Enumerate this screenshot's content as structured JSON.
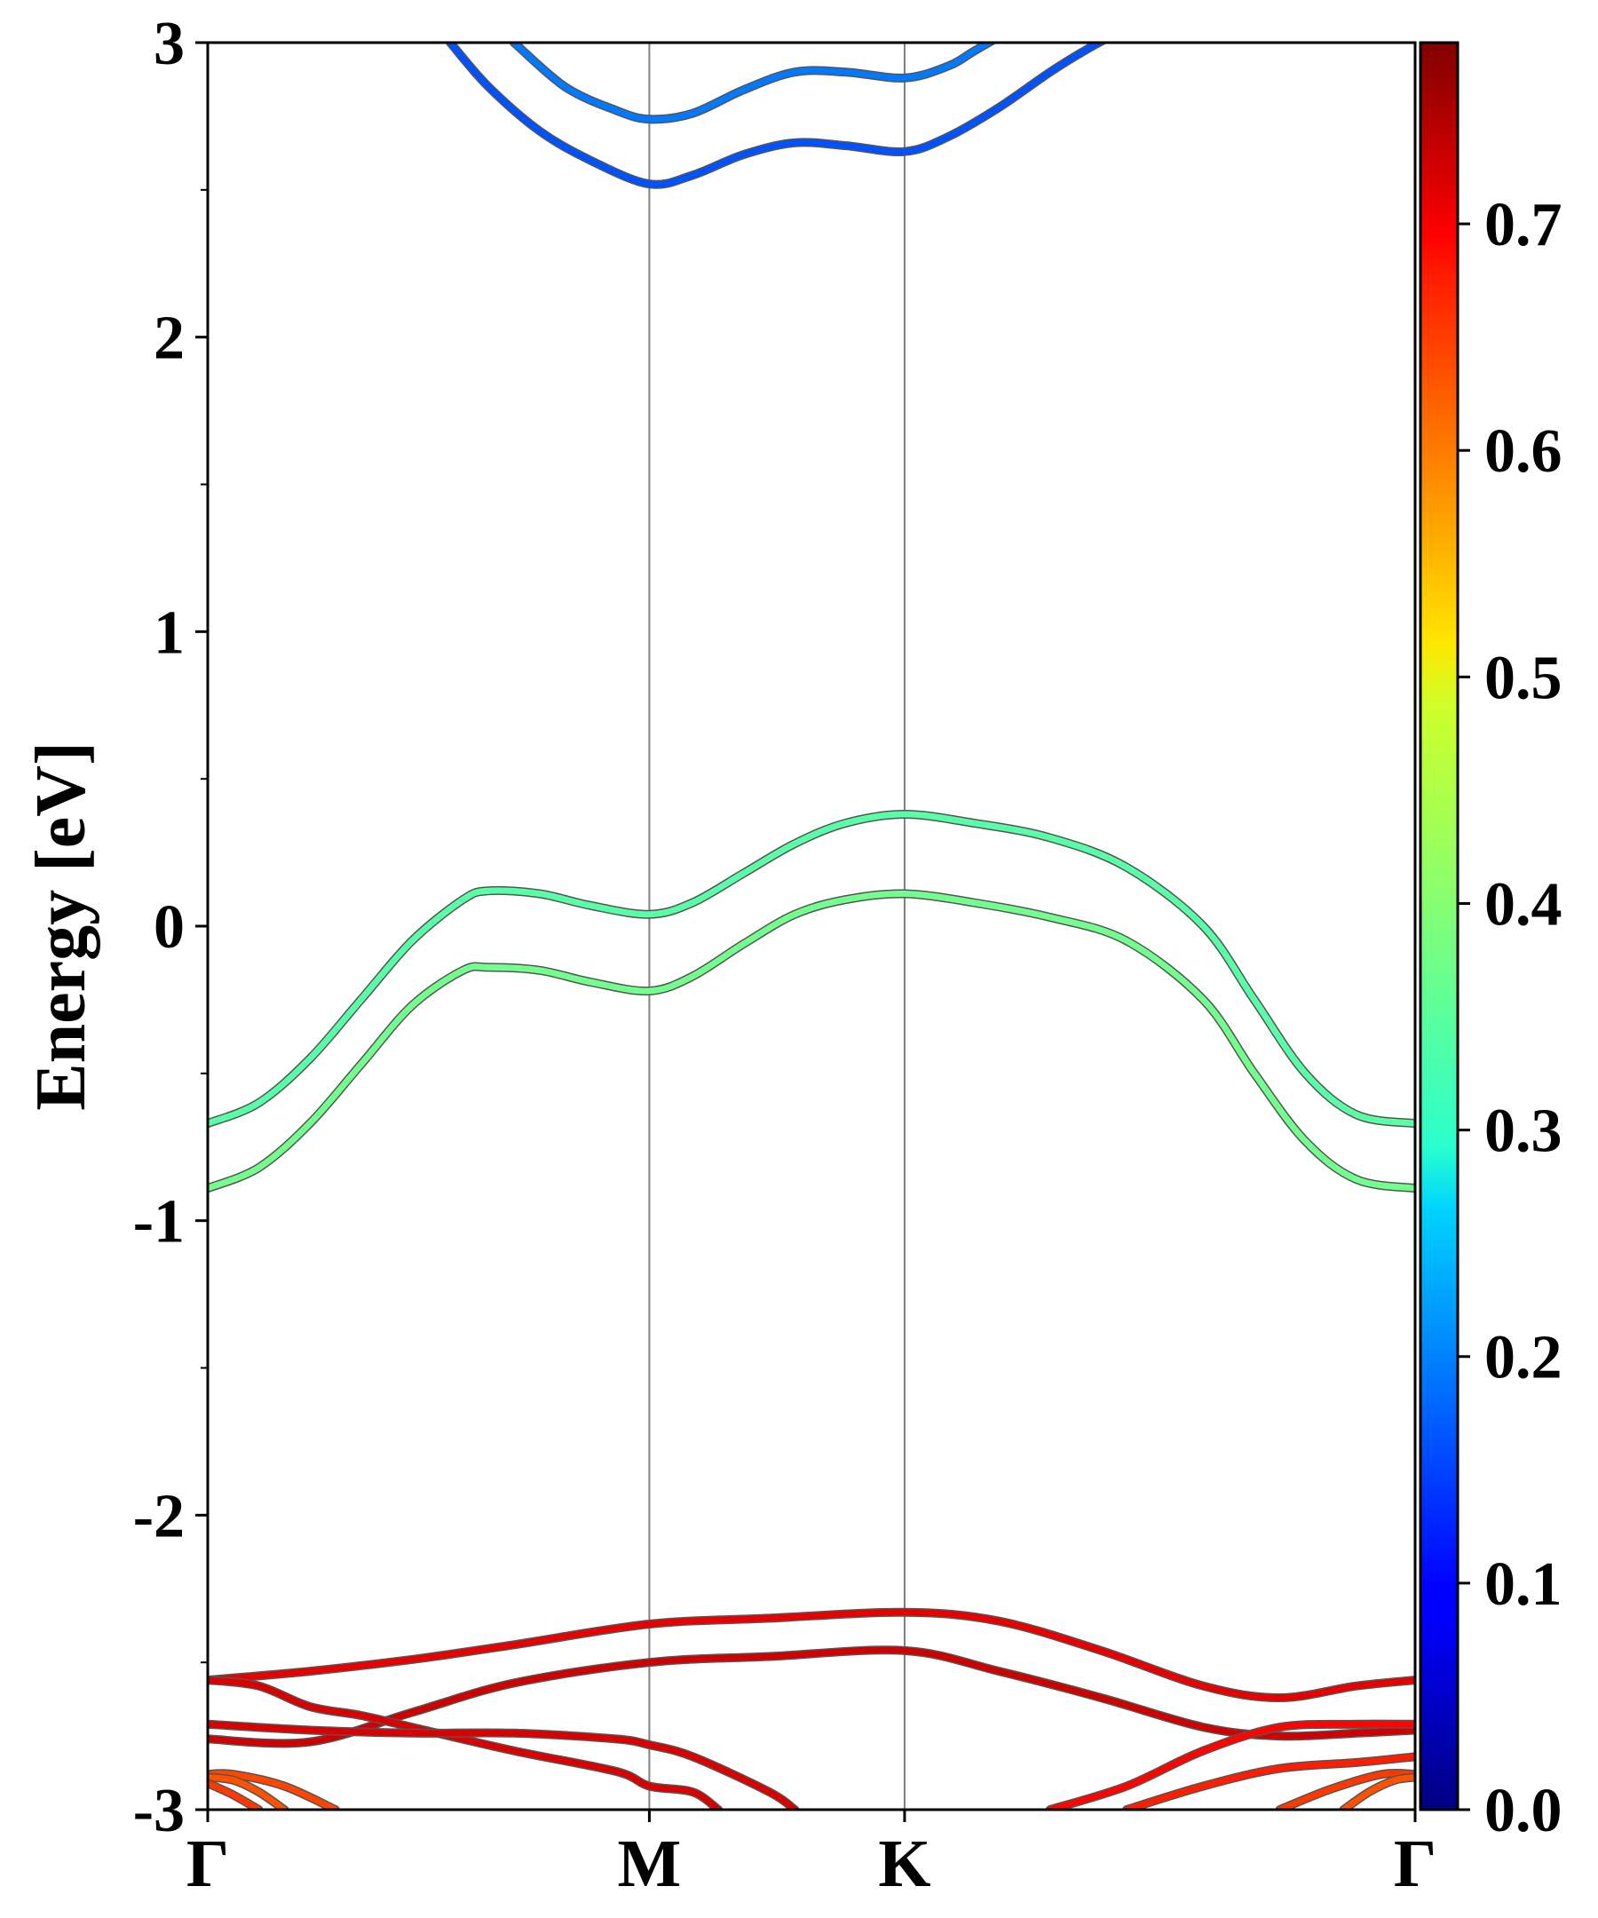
{
  "chart_data": {
    "type": "line",
    "title": "",
    "xlabel": "",
    "ylabel": "Energy [eV]",
    "ylim": [
      -3,
      3
    ],
    "y_ticks": [
      -3,
      -2,
      -1,
      0,
      1,
      2,
      3
    ],
    "y_tick_labels": [
      "-3",
      "-2",
      "-1",
      "0",
      "1",
      "2",
      "3"
    ],
    "x_range": [
      0,
      4.73
    ],
    "k_points": [
      {
        "label": "Γ",
        "x": 0
      },
      {
        "label": "M",
        "x": 1.73
      },
      {
        "label": "K",
        "x": 2.73
      },
      {
        "label": "Γ",
        "x": 4.73
      }
    ],
    "grid": false,
    "colorbar": {
      "colormap": "jet",
      "range": [
        0,
        0.78
      ],
      "ticks": [
        0.0,
        0.1,
        0.2,
        0.3,
        0.4,
        0.5,
        0.6,
        0.7
      ],
      "tick_labels": [
        "0.0",
        "0.1",
        "0.2",
        "0.3",
        "0.4",
        "0.5",
        "0.6",
        "0.7"
      ]
    },
    "series": [
      {
        "x": [
          0.95,
          1.1,
          1.3,
          1.5,
          1.73,
          1.9,
          2.1,
          2.3,
          2.5,
          2.73,
          2.9,
          3.1,
          3.3,
          3.45,
          3.6
        ],
        "y": [
          3.0,
          2.85,
          2.7,
          2.6,
          2.52,
          2.55,
          2.62,
          2.66,
          2.65,
          2.63,
          2.68,
          2.78,
          2.9,
          2.98,
          3.05
        ],
        "color_value": 0.16
      },
      {
        "x": [
          1.2,
          1.4,
          1.6,
          1.73,
          1.9,
          2.1,
          2.3,
          2.5,
          2.73,
          2.9,
          3.0,
          3.1
        ],
        "y": [
          3.0,
          2.85,
          2.77,
          2.74,
          2.76,
          2.84,
          2.9,
          2.9,
          2.88,
          2.92,
          2.97,
          3.02
        ],
        "color_value": 0.19
      },
      {
        "x": [
          0,
          0.2,
          0.4,
          0.6,
          0.8,
          1.0,
          1.1,
          1.3,
          1.5,
          1.73,
          1.9,
          2.1,
          2.3,
          2.5,
          2.73,
          3.0,
          3.3,
          3.6,
          3.9,
          4.1,
          4.3,
          4.5,
          4.73
        ],
        "y": [
          -0.67,
          -0.6,
          -0.45,
          -0.25,
          -0.05,
          0.09,
          0.12,
          0.11,
          0.07,
          0.04,
          0.08,
          0.18,
          0.28,
          0.35,
          0.38,
          0.35,
          0.3,
          0.2,
          0.0,
          -0.25,
          -0.5,
          -0.64,
          -0.67
        ],
        "color_value": 0.36
      },
      {
        "x": [
          0,
          0.2,
          0.4,
          0.6,
          0.8,
          1.0,
          1.1,
          1.3,
          1.5,
          1.73,
          1.9,
          2.1,
          2.3,
          2.5,
          2.73,
          3.0,
          3.3,
          3.6,
          3.9,
          4.1,
          4.3,
          4.5,
          4.73
        ],
        "y": [
          -0.89,
          -0.82,
          -0.67,
          -0.47,
          -0.27,
          -0.15,
          -0.14,
          -0.15,
          -0.19,
          -0.22,
          -0.17,
          -0.06,
          0.04,
          0.09,
          0.11,
          0.08,
          0.03,
          -0.05,
          -0.25,
          -0.5,
          -0.73,
          -0.86,
          -0.89
        ],
        "color_value": 0.38
      },
      {
        "x": [
          0,
          0.4,
          0.8,
          1.2,
          1.73,
          2.2,
          2.73,
          3.1,
          3.5,
          3.9,
          4.2,
          4.5,
          4.73
        ],
        "y": [
          -2.56,
          -2.53,
          -2.49,
          -2.44,
          -2.37,
          -2.35,
          -2.33,
          -2.36,
          -2.46,
          -2.58,
          -2.62,
          -2.58,
          -2.56
        ],
        "color_value": 0.7
      },
      {
        "x": [
          0,
          0.4,
          0.8,
          1.2,
          1.73,
          2.2,
          2.73,
          3.1,
          3.5,
          3.9,
          4.2,
          4.5,
          4.73
        ],
        "y": [
          -2.76,
          -2.77,
          -2.67,
          -2.57,
          -2.5,
          -2.48,
          -2.46,
          -2.53,
          -2.62,
          -2.72,
          -2.75,
          -2.74,
          -2.73
        ],
        "color_value": 0.72
      },
      {
        "x": [
          0,
          0.2,
          0.4,
          0.6,
          0.8,
          1.2,
          1.6,
          1.73,
          1.9,
          2.0
        ],
        "y": [
          -2.56,
          -2.58,
          -2.65,
          -2.68,
          -2.72,
          -2.8,
          -2.87,
          -2.92,
          -2.94,
          -3.0
        ],
        "color_value": 0.71
      },
      {
        "x": [
          0,
          0.4,
          0.8,
          1.2,
          1.6,
          1.73,
          1.9,
          2.2,
          2.3
        ],
        "y": [
          -2.71,
          -2.73,
          -2.74,
          -2.74,
          -2.76,
          -2.78,
          -2.82,
          -2.94,
          -3.0
        ],
        "color_value": 0.71
      },
      {
        "x": [
          3.3,
          3.6,
          3.9,
          4.2,
          4.5,
          4.73
        ],
        "y": [
          -3.0,
          -2.92,
          -2.8,
          -2.72,
          -2.71,
          -2.71
        ],
        "color_value": 0.68
      },
      {
        "x": [
          3.6,
          3.9,
          4.2,
          4.5,
          4.73
        ],
        "y": [
          -3.0,
          -2.92,
          -2.86,
          -2.84,
          -2.82
        ],
        "color_value": 0.66
      },
      {
        "x": [
          4.2,
          4.4,
          4.6,
          4.73
        ],
        "y": [
          -3.0,
          -2.93,
          -2.88,
          -2.88
        ],
        "color_value": 0.64
      },
      {
        "x": [
          4.45,
          4.55,
          4.65,
          4.73
        ],
        "y": [
          -3.0,
          -2.94,
          -2.9,
          -2.89
        ],
        "color_value": 0.62
      },
      {
        "x": [
          0,
          0.1,
          0.3,
          0.5
        ],
        "y": [
          -2.88,
          -2.88,
          -2.92,
          -3.0
        ],
        "color_value": 0.63
      },
      {
        "x": [
          0,
          0.1,
          0.2,
          0.3
        ],
        "y": [
          -2.89,
          -2.9,
          -2.94,
          -3.0
        ],
        "color_value": 0.62
      },
      {
        "x": [
          0,
          0.1,
          0.2
        ],
        "y": [
          -2.91,
          -2.95,
          -3.0
        ],
        "color_value": 0.64
      }
    ]
  }
}
